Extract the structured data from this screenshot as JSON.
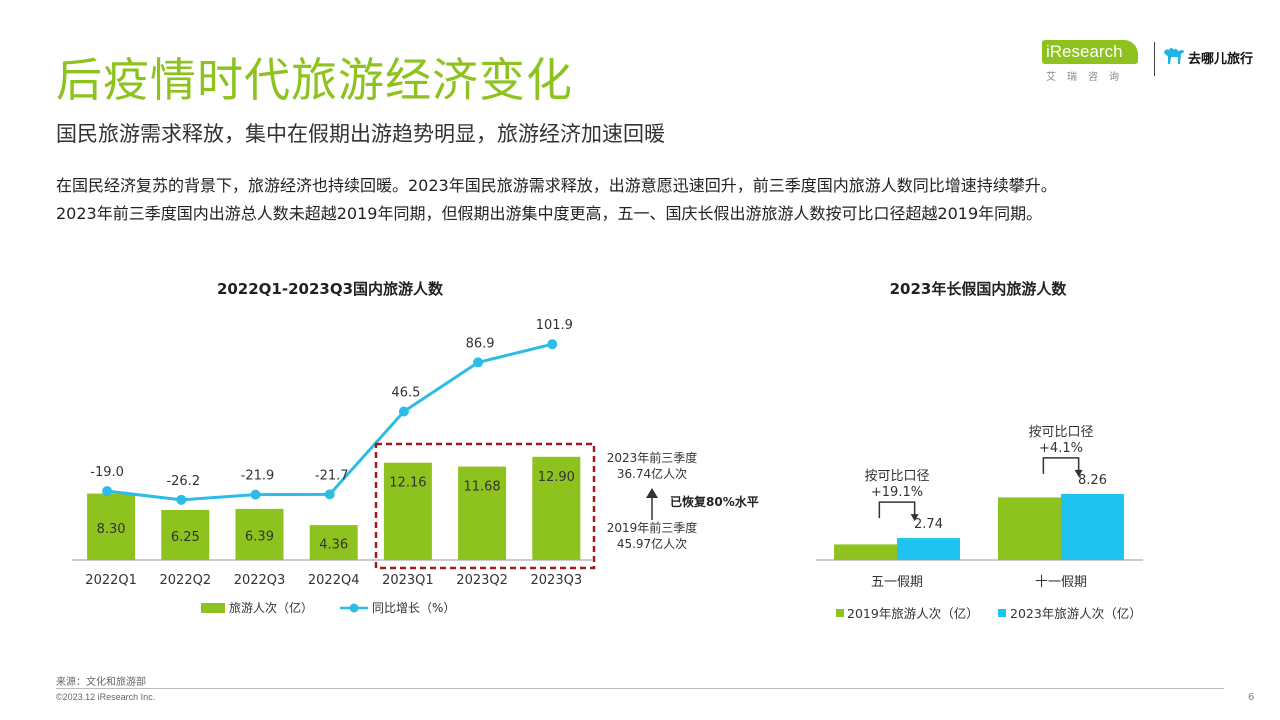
{
  "header": {
    "title": "后疫情时代旅游经济变化",
    "subtitle": "国民旅游需求释放，集中在假期出游趋势明显，旅游经济加速回暖",
    "body_line1": "在国民经济复苏的背景下，旅游经济也持续回暖。2023年国民旅游需求释放，出游意愿迅速回升，前三季度国内旅游人数同比增速持续攀升。",
    "body_line2": "2023年前三季度国内出游总人数未超越2019年同期，但假期出游集中度更高，五一、国庆长假出游旅游人数按可比口径超越2019年同期。"
  },
  "logo": {
    "iresearch": "iResearch",
    "iresearch_sub": "艾瑞咨询",
    "qunar": "去哪儿旅行"
  },
  "colors": {
    "green": "#8dc21f",
    "blue": "#1fc3ef",
    "line": "#2cbce6",
    "red_dash": "#a01a1a"
  },
  "chart_data": [
    {
      "type": "bar",
      "title": "2022Q1-2023Q3国内旅游人数",
      "categories": [
        "2022Q1",
        "2022Q2",
        "2022Q3",
        "2022Q4",
        "2023Q1",
        "2023Q2",
        "2023Q3"
      ],
      "series": [
        {
          "name": "旅游人次（亿）",
          "type": "bar",
          "values": [
            8.3,
            6.25,
            6.39,
            4.36,
            12.16,
            11.68,
            12.9
          ],
          "labels": [
            "8.30",
            "6.25",
            "6.39",
            "4.36",
            "12.16",
            "11.68",
            "12.90"
          ]
        },
        {
          "name": "同比增长（%）",
          "type": "line",
          "values": [
            -19.0,
            -26.2,
            -21.9,
            -21.7,
            46.5,
            86.9,
            101.9
          ],
          "labels": [
            "-19.0",
            "-26.2",
            "-21.9",
            "-21.7",
            "46.5",
            "86.9",
            "101.9"
          ]
        }
      ],
      "annotations": {
        "top": [
          "2023年前三季度",
          "36.74亿人次"
        ],
        "middle": "已恢复80%水平",
        "bottom": [
          "2019年前三季度",
          "45.97亿人次"
        ]
      }
    },
    {
      "type": "bar",
      "title": "2023年长假国内旅游人数",
      "categories": [
        "五一假期",
        "十一假期"
      ],
      "series": [
        {
          "name": "2019年旅游人次（亿）",
          "values": [
            1.95,
            7.82
          ]
        },
        {
          "name": "2023年旅游人次（亿）",
          "values": [
            2.74,
            8.26
          ],
          "labels": [
            "2.74",
            "8.26"
          ]
        }
      ],
      "annotations": [
        {
          "line1": "按可比口径",
          "line2": "+19.1%"
        },
        {
          "line1": "按可比口径",
          "line2": "+4.1%"
        }
      ]
    }
  ],
  "footer": {
    "source": "来源：文化和旅游部",
    "copyright": "©2023.12 iResearch Inc.",
    "page": "6"
  }
}
